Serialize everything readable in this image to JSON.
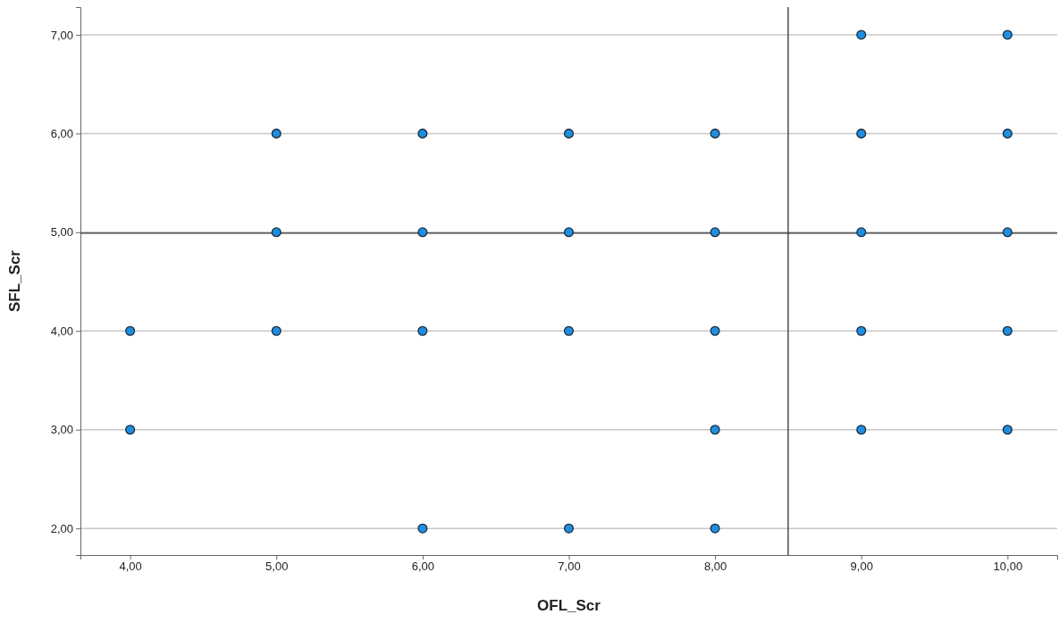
{
  "chart_data": {
    "type": "scatter",
    "xlabel": "OFL_Scr",
    "ylabel": "SFL_Scr",
    "x": [
      4,
      4,
      5,
      5,
      5,
      6,
      6,
      6,
      6,
      7,
      7,
      7,
      7,
      8,
      8,
      8,
      8,
      8,
      9,
      9,
      9,
      9,
      9,
      10,
      10,
      10,
      10,
      10
    ],
    "values": [
      4,
      3,
      6,
      5,
      4,
      6,
      5,
      4,
      2,
      6,
      5,
      4,
      2,
      6,
      5,
      4,
      3,
      2,
      7,
      6,
      5,
      4,
      3,
      7,
      6,
      5,
      4,
      3
    ],
    "color": "#1e8fe0",
    "marker": "circle",
    "xlim": [
      3.66,
      10.34
    ],
    "ylim": [
      1.73,
      7.28
    ],
    "xticks": [
      {
        "value": 4,
        "label": "4,00"
      },
      {
        "value": 5,
        "label": "5,00"
      },
      {
        "value": 6,
        "label": "6,00"
      },
      {
        "value": 7,
        "label": "7,00"
      },
      {
        "value": 8,
        "label": "8,00"
      },
      {
        "value": 9,
        "label": "9,00"
      },
      {
        "value": 10,
        "label": "10,00"
      }
    ],
    "yticks": [
      {
        "value": 2,
        "label": "2,00"
      },
      {
        "value": 3,
        "label": "3,00"
      },
      {
        "value": 4,
        "label": "4,00"
      },
      {
        "value": 5,
        "label": "5,00"
      },
      {
        "value": 6,
        "label": "6,00"
      },
      {
        "value": 7,
        "label": "7,00"
      }
    ],
    "grid": "y",
    "ref_lines": [
      {
        "axis": "x",
        "value": 8.5,
        "color": "#333333"
      },
      {
        "axis": "y",
        "value": 4.99,
        "color": "#333333"
      }
    ]
  }
}
